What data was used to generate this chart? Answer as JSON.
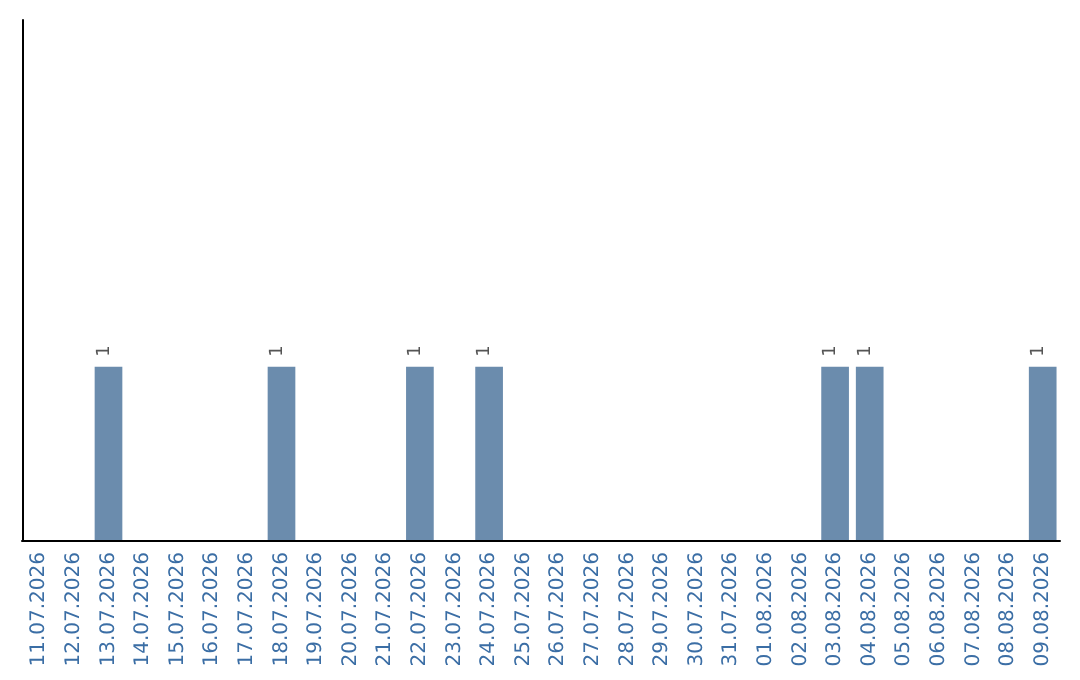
{
  "chart_data": {
    "type": "bar",
    "categories": [
      "11.07.2026",
      "12.07.2026",
      "13.07.2026",
      "14.07.2026",
      "15.07.2026",
      "16.07.2026",
      "17.07.2026",
      "18.07.2026",
      "19.07.2026",
      "20.07.2026",
      "21.07.2026",
      "22.07.2026",
      "23.07.2026",
      "24.07.2026",
      "25.07.2026",
      "26.07.2026",
      "27.07.2026",
      "28.07.2026",
      "29.07.2026",
      "30.07.2026",
      "31.07.2026",
      "01.08.2026",
      "02.08.2026",
      "03.08.2026",
      "04.08.2026",
      "05.08.2026",
      "06.08.2026",
      "07.08.2026",
      "08.08.2026",
      "09.08.2026"
    ],
    "values": [
      0,
      0,
      1,
      0,
      0,
      0,
      0,
      1,
      0,
      0,
      0,
      1,
      0,
      1,
      0,
      0,
      0,
      0,
      0,
      0,
      0,
      0,
      0,
      1,
      1,
      0,
      0,
      0,
      0,
      1
    ],
    "value_labels": [
      null,
      null,
      "1",
      null,
      null,
      null,
      null,
      "1",
      null,
      null,
      null,
      "1",
      null,
      "1",
      null,
      null,
      null,
      null,
      null,
      null,
      null,
      null,
      null,
      "1",
      "1",
      null,
      null,
      null,
      null,
      "1"
    ],
    "color": "#6b8cad",
    "ylim": [
      0,
      3
    ],
    "tick_labels": "x"
  }
}
